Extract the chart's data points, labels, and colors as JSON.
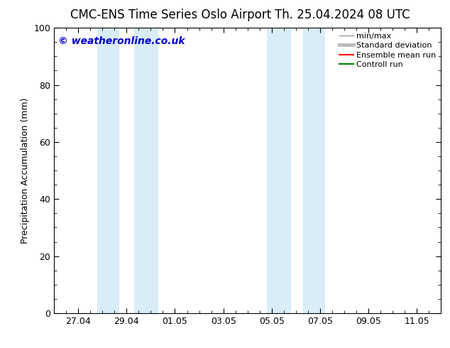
{
  "title_left": "CMC-ENS Time Series Oslo Airport",
  "title_right": "Th. 25.04.2024 08 UTC",
  "ylabel": "Precipitation Accumulation (mm)",
  "watermark": "© weatheronline.co.uk",
  "watermark_color": "#0000cc",
  "ylim": [
    0,
    100
  ],
  "yticks": [
    0,
    20,
    40,
    60,
    80,
    100
  ],
  "xlim": [
    26.0,
    11.5
  ],
  "xtick_labels": [
    "27.04",
    "29.04",
    "01.05",
    "03.05",
    "05.05",
    "07.05",
    "09.05",
    "11.05"
  ],
  "xtick_positions": [
    1,
    3,
    5,
    7,
    9,
    11,
    13,
    15
  ],
  "shaded_bands": [
    {
      "x_start": 2.0,
      "x_end": 4.0,
      "color": "#ddeeff",
      "alpha": 1.0
    },
    {
      "x_start": 8.5,
      "x_end": 10.5,
      "color": "#ddeeff",
      "alpha": 1.0
    }
  ],
  "legend_entries": [
    {
      "label": "min/max",
      "color": "#999999",
      "linewidth": 1.0
    },
    {
      "label": "Standard deviation",
      "color": "#bbbbbb",
      "linewidth": 3.5
    },
    {
      "label": "Ensemble mean run",
      "color": "#ff0000",
      "linewidth": 1.5
    },
    {
      "label": "Controll run",
      "color": "#008000",
      "linewidth": 1.5
    }
  ],
  "background_color": "#ffffff",
  "plot_bg_color": "#ffffff",
  "tick_color": "#000000",
  "title_fontsize": 12,
  "label_fontsize": 9,
  "watermark_fontsize": 10,
  "minor_ticks_per_interval": 4
}
